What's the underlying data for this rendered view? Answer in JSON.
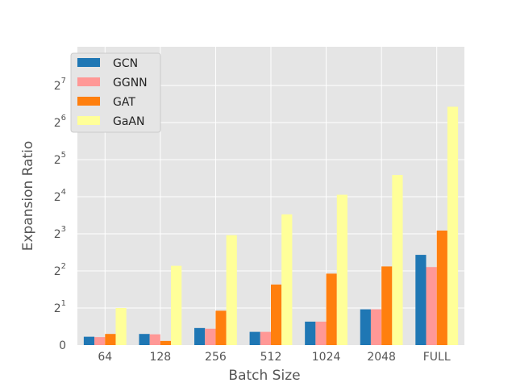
{
  "chart_data": {
    "type": "bar",
    "xlabel": "Batch Size",
    "ylabel": "Expansion Ratio",
    "y_scale": "log-base-2 (symlog, 0 at bottom)",
    "categories": [
      "64",
      "128",
      "256",
      "512",
      "1024",
      "2048",
      "FULL"
    ],
    "series": [
      {
        "name": "GCN",
        "color": "#1f77b4",
        "values": [
          0.45,
          0.6,
          0.92,
          1.28,
          1.55,
          1.95,
          5.4
        ]
      },
      {
        "name": "GGNN",
        "color": "#ff9896",
        "values": [
          0.43,
          0.58,
          0.88,
          1.28,
          1.55,
          1.95,
          4.3
        ]
      },
      {
        "name": "GAT",
        "color": "#ff7f0e",
        "values": [
          0.6,
          1.08,
          1.9,
          3.1,
          3.8,
          4.35,
          8.5
        ]
      },
      {
        "name": "GaAN",
        "color": "#ffff99",
        "values": [
          2.0,
          4.4,
          7.8,
          11.5,
          16.6,
          24.0,
          86.0
        ]
      }
    ],
    "y_ticks": [
      {
        "value": 0,
        "base": "0",
        "exp": ""
      },
      {
        "value": 2,
        "base": "2",
        "exp": "1"
      },
      {
        "value": 4,
        "base": "2",
        "exp": "2"
      },
      {
        "value": 8,
        "base": "2",
        "exp": "3"
      },
      {
        "value": 16,
        "base": "2",
        "exp": "4"
      },
      {
        "value": 32,
        "base": "2",
        "exp": "5"
      },
      {
        "value": 64,
        "base": "2",
        "exp": "6"
      },
      {
        "value": 128,
        "base": "2",
        "exp": "7"
      }
    ],
    "legend_position": "top-left",
    "grid": true,
    "background": "#e5e5e5"
  }
}
